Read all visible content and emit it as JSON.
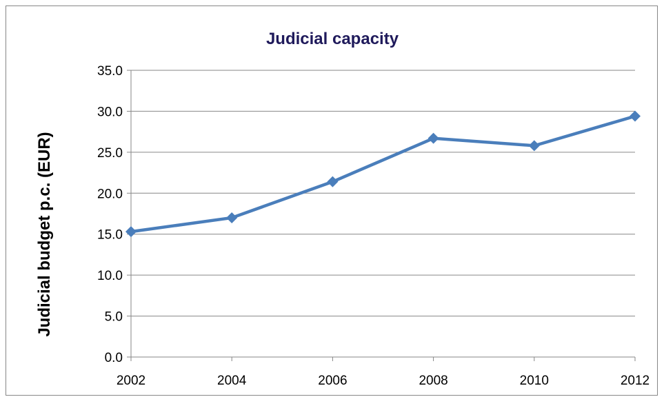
{
  "chart_data": {
    "type": "line",
    "title": "Judicial capacity",
    "xlabel": "",
    "ylabel": "Judicial budget p.c. (EUR)",
    "categories": [
      "2002",
      "2004",
      "2006",
      "2008",
      "2010",
      "2012"
    ],
    "series": [
      {
        "values": [
          15.3,
          17.0,
          21.4,
          26.7,
          25.8,
          29.4
        ],
        "color": "#4a7ebb",
        "marker": "diamond"
      }
    ],
    "ylim": [
      0,
      35
    ],
    "yticks": [
      0,
      5,
      10,
      15,
      20,
      25,
      30,
      35
    ],
    "ytick_labels": [
      "0.0",
      "5.0",
      "10.0",
      "15.0",
      "20.0",
      "25.0",
      "30.0",
      "35.0"
    ],
    "grid": true,
    "legend": "none"
  }
}
